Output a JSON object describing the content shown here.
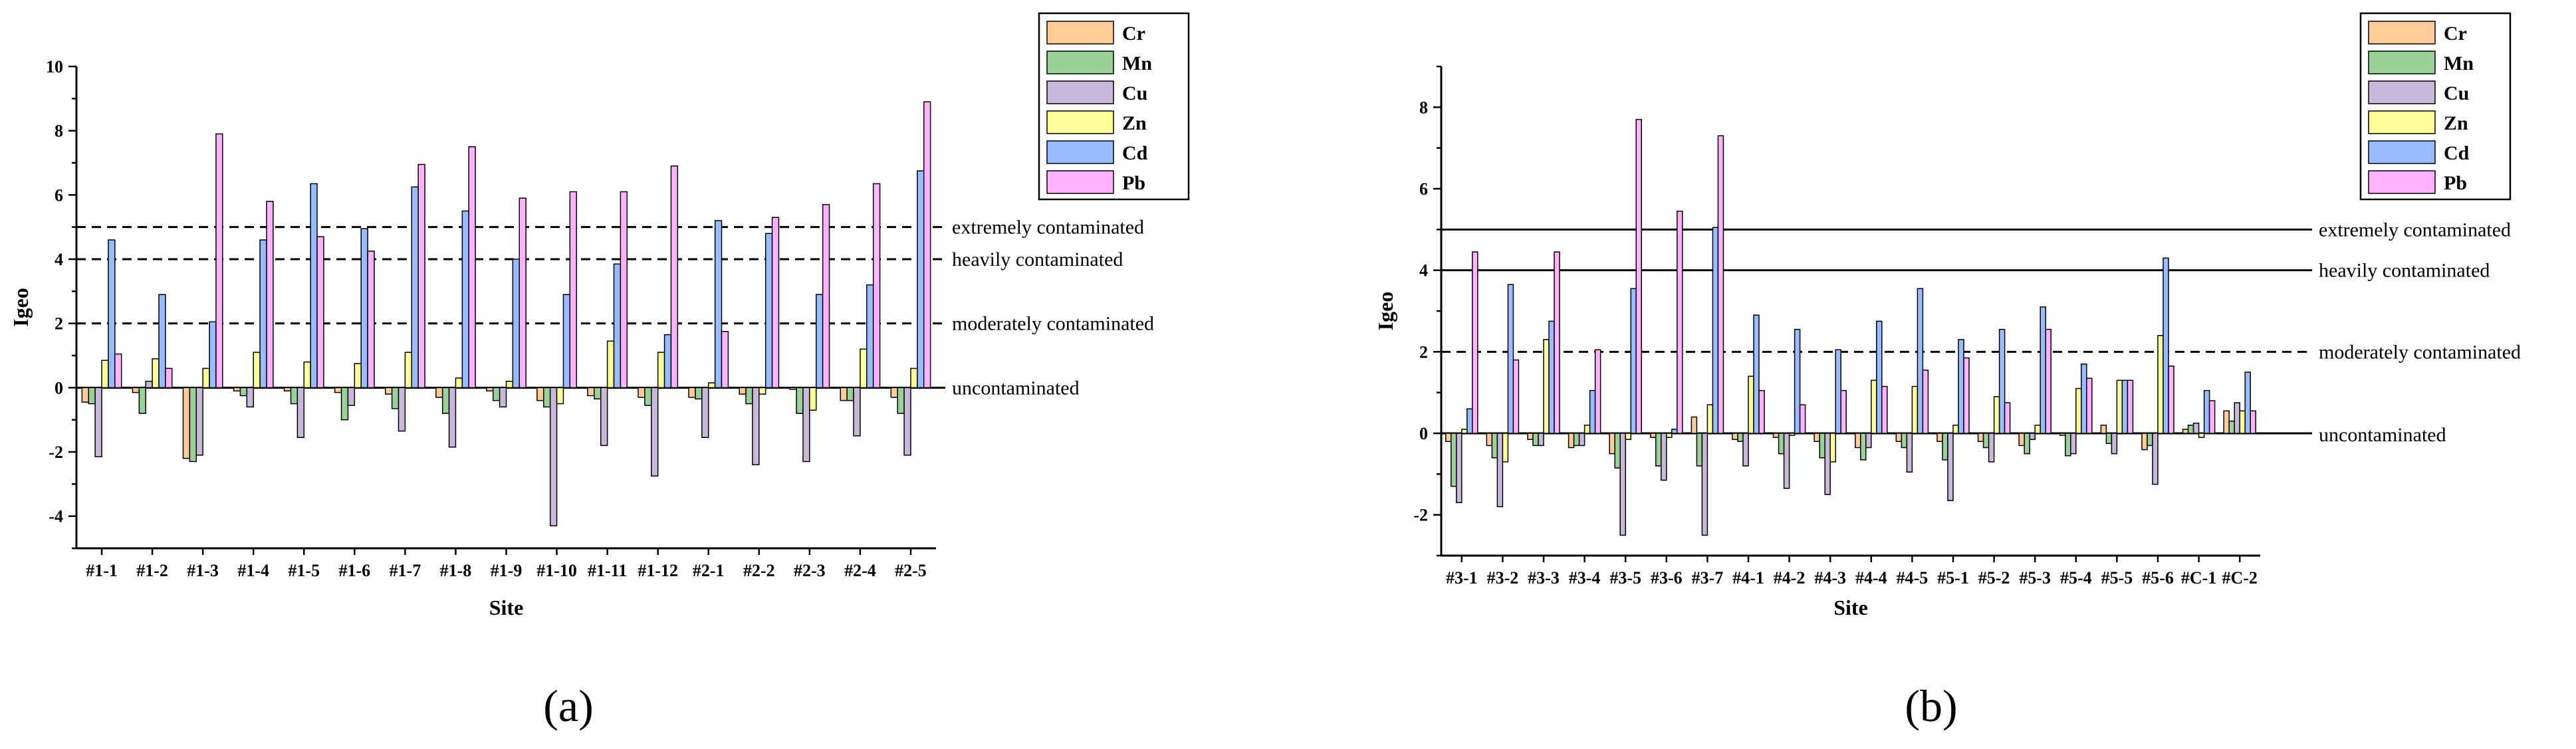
{
  "chart_data": [
    {
      "type": "bar",
      "panel_label": "(a)",
      "xlabel": "Site",
      "ylabel": "Igeo",
      "ylim": [
        -5,
        10
      ],
      "yticks": [
        -4,
        -2,
        0,
        2,
        4,
        6,
        8,
        10
      ],
      "categories": [
        "#1-1",
        "#1-2",
        "#1-3",
        "#1-4",
        "#1-5",
        "#1-6",
        "#1-7",
        "#1-8",
        "#1-9",
        "#1-10",
        "#1-11",
        "#1-12",
        "#2-1",
        "#2-2",
        "#2-3",
        "#2-4",
        "#2-5"
      ],
      "series": [
        {
          "name": "Cr",
          "color": "#FFCC99",
          "values": [
            -0.45,
            -0.15,
            -2.2,
            -0.1,
            -0.1,
            -0.15,
            -0.2,
            -0.3,
            -0.1,
            -0.4,
            -0.25,
            -0.3,
            -0.3,
            -0.2,
            -0.05,
            -0.4,
            -0.3
          ]
        },
        {
          "name": "Mn",
          "color": "#99D199",
          "values": [
            -0.5,
            -0.8,
            -2.3,
            -0.25,
            -0.5,
            -1.0,
            -0.65,
            -0.8,
            -0.4,
            -0.6,
            -0.35,
            -0.55,
            -0.35,
            -0.5,
            -0.8,
            -0.4,
            -0.8
          ]
        },
        {
          "name": "Cu",
          "color": "#C8B9DB",
          "values": [
            -2.15,
            0.2,
            -2.1,
            -0.6,
            -1.55,
            -0.55,
            -1.35,
            -1.85,
            -0.6,
            -4.3,
            -1.8,
            -2.75,
            -1.55,
            -2.4,
            -2.3,
            -1.5,
            -2.1
          ]
        },
        {
          "name": "Zn",
          "color": "#FFFF99",
          "values": [
            0.85,
            0.9,
            0.6,
            1.1,
            0.8,
            0.75,
            1.1,
            0.3,
            0.2,
            -0.5,
            1.45,
            1.1,
            0.15,
            -0.2,
            -0.7,
            1.2,
            0.6
          ]
        },
        {
          "name": "Cd",
          "color": "#99BBFF",
          "values": [
            4.6,
            2.9,
            2.05,
            4.6,
            6.35,
            4.95,
            6.25,
            5.5,
            4.0,
            2.9,
            3.85,
            1.65,
            5.2,
            4.8,
            2.9,
            3.2,
            6.75
          ]
        },
        {
          "name": "Pb",
          "color": "#FFB3FF",
          "values": [
            1.05,
            0.6,
            7.9,
            5.8,
            4.7,
            4.25,
            6.95,
            7.5,
            5.9,
            6.1,
            6.1,
            6.9,
            1.75,
            5.3,
            5.7,
            6.35,
            8.9
          ]
        }
      ],
      "reference_lines": [
        {
          "value": 5,
          "label": "extremely contaminated",
          "dashed": true
        },
        {
          "value": 4,
          "label": "heavily contaminated",
          "dashed": true
        },
        {
          "value": 2,
          "label": "moderately contaminated",
          "dashed": true
        },
        {
          "value": 0,
          "label": "uncontaminated",
          "dashed": false
        }
      ],
      "legend": [
        "Cr",
        "Mn",
        "Cu",
        "Zn",
        "Cd",
        "Pb"
      ]
    },
    {
      "type": "bar",
      "panel_label": "(b)",
      "xlabel": "Site",
      "ylabel": "Igeo",
      "ylim": [
        -3,
        9
      ],
      "yticks": [
        -2,
        0,
        2,
        4,
        6,
        8
      ],
      "categories": [
        "#3-1",
        "#3-2",
        "#3-3",
        "#3-4",
        "#3-5",
        "#3-6",
        "#3-7",
        "#4-1",
        "#4-2",
        "#4-3",
        "#4-4",
        "#4-5",
        "#5-1",
        "#5-2",
        "#5-3",
        "#5-4",
        "#5-5",
        "#5-6",
        "#C-1",
        "#C-2"
      ],
      "series": [
        {
          "name": "Cr",
          "color": "#FFCC99",
          "values": [
            -0.2,
            -0.3,
            -0.15,
            -0.35,
            -0.5,
            -0.1,
            0.4,
            -0.15,
            -0.1,
            -0.2,
            -0.35,
            -0.2,
            -0.2,
            -0.2,
            -0.3,
            -0.05,
            0.2,
            -0.4,
            0.1,
            0.55
          ]
        },
        {
          "name": "Mn",
          "color": "#99D199",
          "values": [
            -1.3,
            -0.6,
            -0.3,
            -0.3,
            -0.85,
            -0.8,
            -0.8,
            -0.2,
            -0.5,
            -0.6,
            -0.65,
            -0.35,
            -0.65,
            -0.35,
            -0.5,
            -0.55,
            -0.25,
            -0.3,
            0.2,
            0.3
          ]
        },
        {
          "name": "Cu",
          "color": "#C8B9DB",
          "values": [
            -1.7,
            -1.8,
            -0.3,
            -0.3,
            -2.5,
            -1.15,
            -2.5,
            -0.8,
            -1.35,
            -1.5,
            -0.35,
            -0.95,
            -1.65,
            -0.7,
            -0.15,
            -0.5,
            -0.5,
            -1.25,
            0.25,
            0.75
          ]
        },
        {
          "name": "Zn",
          "color": "#FFFF99",
          "values": [
            0.1,
            -0.7,
            2.3,
            0.2,
            -0.15,
            -0.1,
            0.7,
            1.4,
            -0.05,
            -0.7,
            1.3,
            1.15,
            0.2,
            0.9,
            0.2,
            1.1,
            1.3,
            2.4,
            -0.1,
            0.55
          ]
        },
        {
          "name": "Cd",
          "color": "#99BBFF",
          "values": [
            0.6,
            3.65,
            2.75,
            1.05,
            3.55,
            0.1,
            5.05,
            2.9,
            2.55,
            2.05,
            2.75,
            3.55,
            2.3,
            2.55,
            3.1,
            1.7,
            1.3,
            4.3,
            1.05,
            1.5
          ]
        },
        {
          "name": "Pb",
          "color": "#FFB3FF",
          "values": [
            4.45,
            1.8,
            4.45,
            2.05,
            7.7,
            5.45,
            7.3,
            1.05,
            0.7,
            1.05,
            1.15,
            1.55,
            1.85,
            0.75,
            2.55,
            1.35,
            1.3,
            1.65,
            0.8,
            0.55
          ]
        }
      ],
      "reference_lines": [
        {
          "value": 5,
          "label": "extremely contaminated",
          "dashed": false
        },
        {
          "value": 4,
          "label": "heavily contaminated",
          "dashed": false
        },
        {
          "value": 2,
          "label": "moderately contaminated",
          "dashed": true
        },
        {
          "value": 0,
          "label": "uncontaminated",
          "dashed": false
        }
      ],
      "legend": [
        "Cr",
        "Mn",
        "Cu",
        "Zn",
        "Cd",
        "Pb"
      ]
    }
  ]
}
